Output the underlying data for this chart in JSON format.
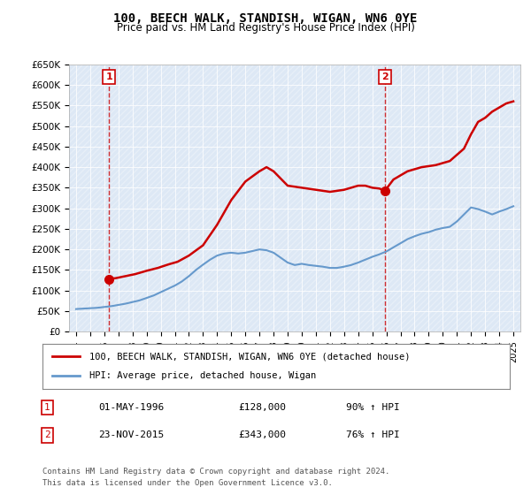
{
  "title": "100, BEECH WALK, STANDISH, WIGAN, WN6 0YE",
  "subtitle": "Price paid vs. HM Land Registry's House Price Index (HPI)",
  "ylabel_ticks": [
    "£0",
    "£50K",
    "£100K",
    "£150K",
    "£200K",
    "£250K",
    "£300K",
    "£350K",
    "£400K",
    "£450K",
    "£500K",
    "£550K",
    "£600K",
    "£650K"
  ],
  "ylim": [
    0,
    650000
  ],
  "yticks": [
    0,
    50000,
    100000,
    150000,
    200000,
    250000,
    300000,
    350000,
    400000,
    450000,
    500000,
    550000,
    600000,
    650000
  ],
  "xlim_min": 1993.5,
  "xlim_max": 2025.5,
  "sale1_x": 1996.33,
  "sale1_y": 128000,
  "sale1_label": "1",
  "sale2_x": 2015.9,
  "sale2_y": 343000,
  "sale2_label": "2",
  "hpi_color": "#6699cc",
  "price_color": "#cc0000",
  "vline_color": "#cc0000",
  "legend_line1": "100, BEECH WALK, STANDISH, WIGAN, WN6 0YE (detached house)",
  "legend_line2": "HPI: Average price, detached house, Wigan",
  "table_row1": [
    "1",
    "01-MAY-1996",
    "£128,000",
    "90% ↑ HPI"
  ],
  "table_row2": [
    "2",
    "23-NOV-2015",
    "£343,000",
    "76% ↑ HPI"
  ],
  "footnote1": "Contains HM Land Registry data © Crown copyright and database right 2024.",
  "footnote2": "This data is licensed under the Open Government Licence v3.0.",
  "hpi_data_x": [
    1994,
    1994.5,
    1995,
    1995.5,
    1996,
    1996.5,
    1997,
    1997.5,
    1998,
    1998.5,
    1999,
    1999.5,
    2000,
    2000.5,
    2001,
    2001.5,
    2002,
    2002.5,
    2003,
    2003.5,
    2004,
    2004.5,
    2005,
    2005.5,
    2006,
    2006.5,
    2007,
    2007.5,
    2008,
    2008.5,
    2009,
    2009.5,
    2010,
    2010.5,
    2011,
    2011.5,
    2012,
    2012.5,
    2013,
    2013.5,
    2014,
    2014.5,
    2015,
    2015.5,
    2016,
    2016.5,
    2017,
    2017.5,
    2018,
    2018.5,
    2019,
    2019.5,
    2020,
    2020.5,
    2021,
    2021.5,
    2022,
    2022.5,
    2023,
    2023.5,
    2024,
    2024.5,
    2025
  ],
  "hpi_data_y": [
    55000,
    56000,
    57000,
    58000,
    60000,
    62000,
    65000,
    68000,
    72000,
    76000,
    82000,
    88000,
    96000,
    104000,
    112000,
    122000,
    135000,
    150000,
    163000,
    175000,
    185000,
    190000,
    192000,
    190000,
    192000,
    196000,
    200000,
    198000,
    192000,
    180000,
    168000,
    162000,
    165000,
    162000,
    160000,
    158000,
    155000,
    155000,
    158000,
    162000,
    168000,
    175000,
    182000,
    188000,
    195000,
    205000,
    215000,
    225000,
    232000,
    238000,
    242000,
    248000,
    252000,
    255000,
    268000,
    285000,
    302000,
    298000,
    292000,
    285000,
    292000,
    298000,
    305000
  ],
  "price_data_x": [
    1996.33,
    1996.8,
    1997.5,
    1998.2,
    1999.0,
    1999.8,
    2000.5,
    2001.2,
    2002.0,
    2003.0,
    2004.0,
    2005.0,
    2006.0,
    2007.0,
    2007.5,
    2008.0,
    2009.0,
    2010.0,
    2011.0,
    2012.0,
    2013.0,
    2014.0,
    2014.5,
    2015.0,
    2015.5,
    2015.9,
    2016.5,
    2017.5,
    2018.5,
    2019.5,
    2020.5,
    2021.0,
    2021.5,
    2022.0,
    2022.5,
    2023.0,
    2023.5,
    2024.0,
    2024.5,
    2025.0
  ],
  "price_data_y": [
    128000,
    130000,
    135000,
    140000,
    148000,
    155000,
    163000,
    170000,
    185000,
    210000,
    260000,
    320000,
    365000,
    390000,
    400000,
    390000,
    355000,
    350000,
    345000,
    340000,
    345000,
    355000,
    355000,
    350000,
    348000,
    343000,
    370000,
    390000,
    400000,
    405000,
    415000,
    430000,
    445000,
    480000,
    510000,
    520000,
    535000,
    545000,
    555000,
    560000
  ],
  "xtick_years": [
    1994,
    1995,
    1996,
    1997,
    1998,
    1999,
    2000,
    2001,
    2002,
    2003,
    2004,
    2005,
    2006,
    2007,
    2008,
    2009,
    2010,
    2011,
    2012,
    2013,
    2014,
    2015,
    2016,
    2017,
    2018,
    2019,
    2020,
    2021,
    2022,
    2023,
    2024,
    2025
  ],
  "bg_color": "#e8e8f0",
  "plot_bg_color": "#dde8f5"
}
